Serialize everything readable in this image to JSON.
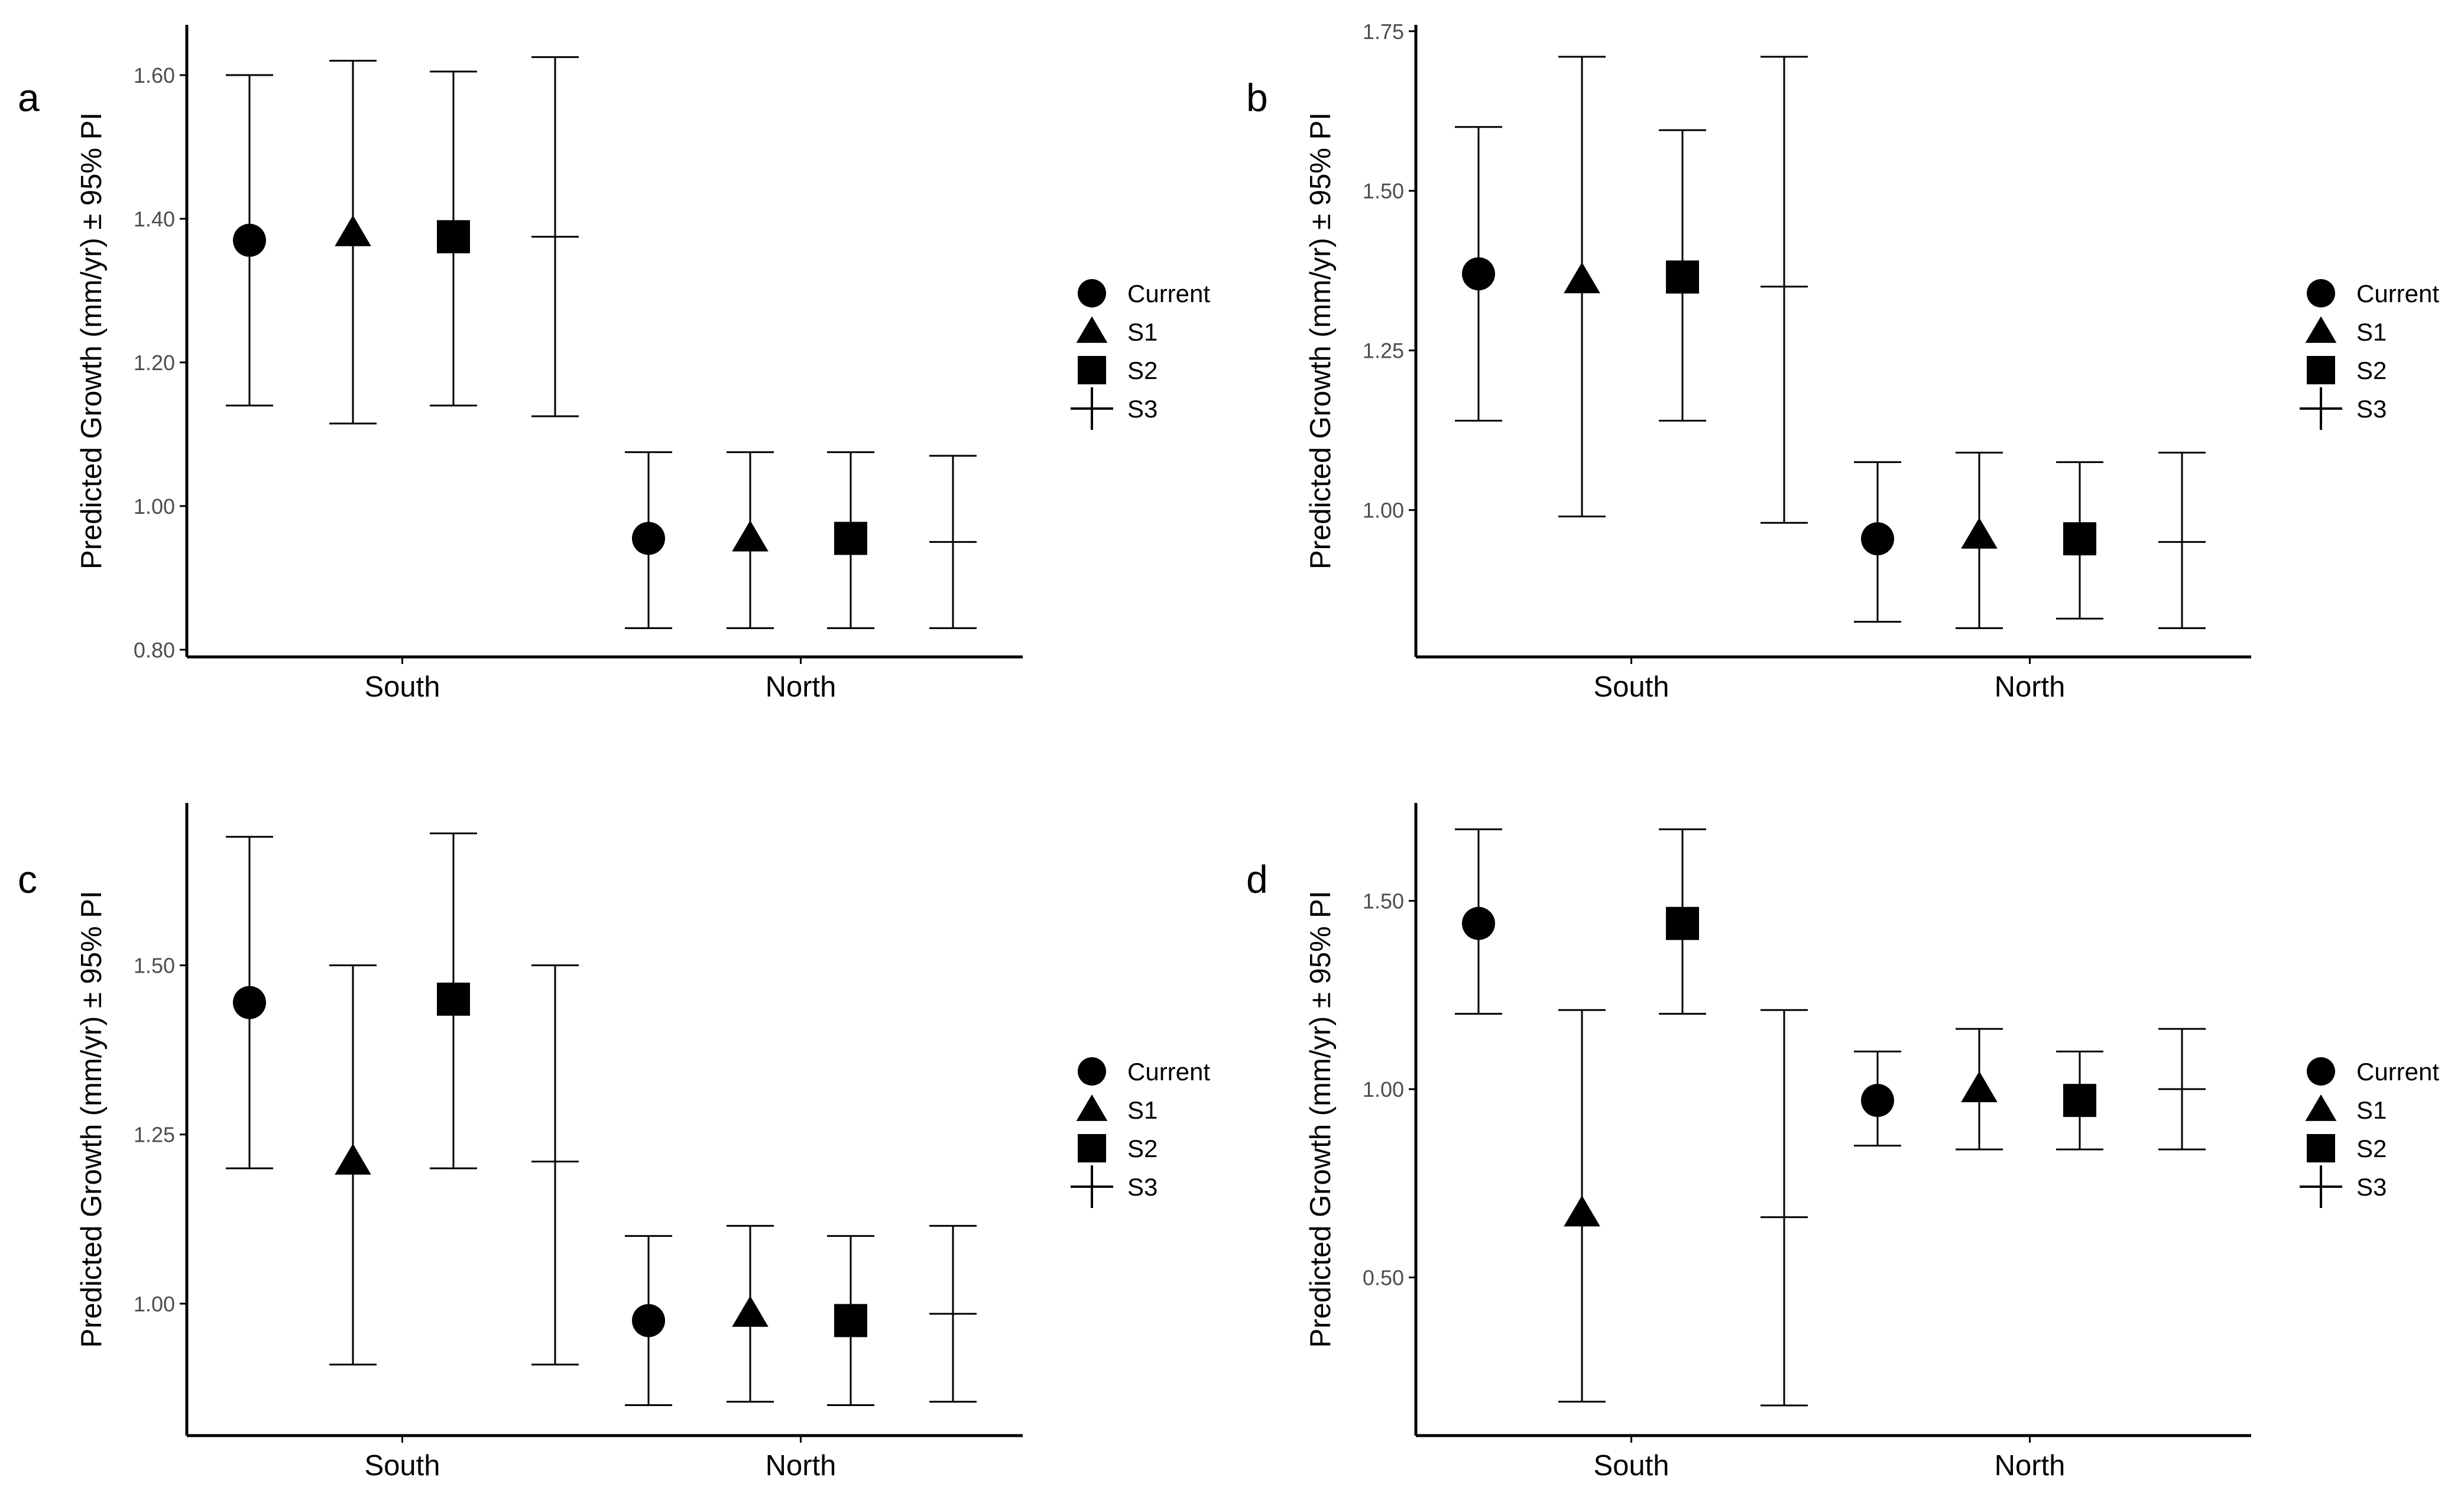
{
  "chart_data": [
    {
      "panel_label": "a",
      "type": "scatter",
      "ylabel": "Predicted Growth (mm/yr) ± 95% PI",
      "categories": [
        "South",
        "North"
      ],
      "yticks": [
        "0.80",
        "1.00",
        "1.20",
        "1.40",
        "1.60"
      ],
      "ylim": [
        0.79,
        1.67
      ],
      "series": [
        {
          "name": "Current",
          "points": [
            {
              "y": 1.37,
              "lo": 1.14,
              "hi": 1.6
            },
            {
              "y": 0.955,
              "lo": 0.83,
              "hi": 1.075
            }
          ]
        },
        {
          "name": "S1",
          "points": [
            {
              "y": 1.38,
              "lo": 1.115,
              "hi": 1.62
            },
            {
              "y": 0.955,
              "lo": 0.83,
              "hi": 1.075
            }
          ]
        },
        {
          "name": "S2",
          "points": [
            {
              "y": 1.375,
              "lo": 1.14,
              "hi": 1.605
            },
            {
              "y": 0.955,
              "lo": 0.83,
              "hi": 1.075
            }
          ]
        },
        {
          "name": "S3",
          "points": [
            {
              "y": 1.375,
              "lo": 1.125,
              "hi": 1.625
            },
            {
              "y": 0.95,
              "lo": 0.83,
              "hi": 1.07
            }
          ]
        }
      ]
    },
    {
      "panel_label": "b",
      "type": "scatter",
      "ylabel": "Predicted Growth (mm/yr) ± 95% PI",
      "categories": [
        "South",
        "North"
      ],
      "yticks": [
        "1.00",
        "1.25",
        "1.50",
        "1.75"
      ],
      "ylim": [
        0.77,
        1.76
      ],
      "series": [
        {
          "name": "Current",
          "points": [
            {
              "y": 1.37,
              "lo": 1.14,
              "hi": 1.6
            },
            {
              "y": 0.955,
              "lo": 0.825,
              "hi": 1.075
            }
          ]
        },
        {
          "name": "S1",
          "points": [
            {
              "y": 1.36,
              "lo": 0.99,
              "hi": 1.71
            },
            {
              "y": 0.96,
              "lo": 0.815,
              "hi": 1.09
            }
          ]
        },
        {
          "name": "S2",
          "points": [
            {
              "y": 1.365,
              "lo": 1.14,
              "hi": 1.595
            },
            {
              "y": 0.955,
              "lo": 0.83,
              "hi": 1.075
            }
          ]
        },
        {
          "name": "S3",
          "points": [
            {
              "y": 1.35,
              "lo": 0.98,
              "hi": 1.71
            },
            {
              "y": 0.95,
              "lo": 0.815,
              "hi": 1.09
            }
          ]
        }
      ]
    },
    {
      "panel_label": "c",
      "type": "scatter",
      "ylabel": "Predicted Growth (mm/yr) ± 95% PI",
      "categories": [
        "South",
        "North"
      ],
      "yticks": [
        "1.00",
        "1.25",
        "1.50"
      ],
      "ylim": [
        0.805,
        1.74
      ],
      "series": [
        {
          "name": "Current",
          "points": [
            {
              "y": 1.445,
              "lo": 1.2,
              "hi": 1.69
            },
            {
              "y": 0.975,
              "lo": 0.85,
              "hi": 1.1
            }
          ]
        },
        {
          "name": "S1",
          "points": [
            {
              "y": 1.21,
              "lo": 0.91,
              "hi": 1.5
            },
            {
              "y": 0.985,
              "lo": 0.855,
              "hi": 1.115
            }
          ]
        },
        {
          "name": "S2",
          "points": [
            {
              "y": 1.45,
              "lo": 1.2,
              "hi": 1.695
            },
            {
              "y": 0.975,
              "lo": 0.85,
              "hi": 1.1
            }
          ]
        },
        {
          "name": "S3",
          "points": [
            {
              "y": 1.21,
              "lo": 0.91,
              "hi": 1.5
            },
            {
              "y": 0.985,
              "lo": 0.855,
              "hi": 1.115
            }
          ]
        }
      ]
    },
    {
      "panel_label": "d",
      "type": "scatter",
      "ylabel": "Predicted Growth (mm/yr) ± 95% PI",
      "categories": [
        "South",
        "North"
      ],
      "yticks": [
        "0.50",
        "1.00",
        "1.50"
      ],
      "ylim": [
        0.08,
        1.76
      ],
      "series": [
        {
          "name": "Current",
          "points": [
            {
              "y": 1.44,
              "lo": 1.2,
              "hi": 1.69
            },
            {
              "y": 0.97,
              "lo": 0.85,
              "hi": 1.1
            }
          ]
        },
        {
          "name": "S1",
          "points": [
            {
              "y": 0.67,
              "lo": 0.17,
              "hi": 1.21
            },
            {
              "y": 1.0,
              "lo": 0.84,
              "hi": 1.16
            }
          ]
        },
        {
          "name": "S2",
          "points": [
            {
              "y": 1.44,
              "lo": 1.2,
              "hi": 1.69
            },
            {
              "y": 0.97,
              "lo": 0.84,
              "hi": 1.1
            }
          ]
        },
        {
          "name": "S3",
          "points": [
            {
              "y": 0.66,
              "lo": 0.16,
              "hi": 1.21
            },
            {
              "y": 1.0,
              "lo": 0.84,
              "hi": 1.16
            }
          ]
        }
      ]
    }
  ],
  "legend": {
    "entries": [
      {
        "label": "Current",
        "shape": "circle"
      },
      {
        "label": "S1",
        "shape": "triangle"
      },
      {
        "label": "S2",
        "shape": "square"
      },
      {
        "label": "S3",
        "shape": "plus"
      }
    ]
  },
  "colors": {
    "marks": "#000000",
    "tick_labels": "#4d4d4d",
    "background": "#ffffff"
  }
}
